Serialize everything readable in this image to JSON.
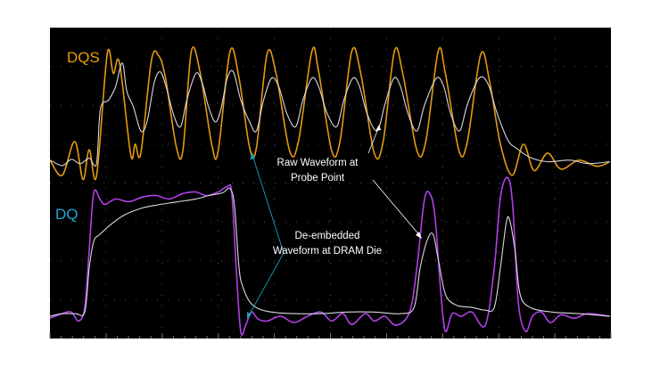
{
  "chart_data": {
    "type": "line",
    "title": "",
    "xlabel": "",
    "ylabel": "",
    "xlim": [
      0,
      10
    ],
    "ylim": [
      0,
      8
    ],
    "grid": true,
    "background": "#000000",
    "channel_labels": [
      {
        "text": "DQS",
        "color": "#e8a000"
      },
      {
        "text": "DQ",
        "color": "#1fa8d8"
      }
    ],
    "series": [
      {
        "channel": "DQS",
        "kind": "de-embedded",
        "color": "#e39a10",
        "points": [
          [
            0,
            4.59
          ],
          [
            0.22,
            4.2
          ],
          [
            0.44,
            5.07
          ],
          [
            0.59,
            4.09
          ],
          [
            0.7,
            4.86
          ],
          [
            0.83,
            4.18
          ],
          [
            1.02,
            7.32
          ],
          [
            1.13,
            6.82
          ],
          [
            1.24,
            7.09
          ],
          [
            1.44,
            4.73
          ],
          [
            1.52,
            5.0
          ],
          [
            1.62,
            4.77
          ],
          [
            1.81,
            7.16
          ],
          [
            1.94,
            7.27
          ],
          [
            2.06,
            6.7
          ],
          [
            2.25,
            4.95
          ],
          [
            2.37,
            4.84
          ],
          [
            2.52,
            7.39
          ],
          [
            2.68,
            6.82
          ],
          [
            2.89,
            4.95
          ],
          [
            3.0,
            4.84
          ],
          [
            3.21,
            7.39
          ],
          [
            3.37,
            6.7
          ],
          [
            3.56,
            4.91
          ],
          [
            3.68,
            4.91
          ],
          [
            3.87,
            7.32
          ],
          [
            4.03,
            6.82
          ],
          [
            4.27,
            4.84
          ],
          [
            4.43,
            5.07
          ],
          [
            4.67,
            7.39
          ],
          [
            4.79,
            6.86
          ],
          [
            5.02,
            4.84
          ],
          [
            5.17,
            5.07
          ],
          [
            5.38,
            7.39
          ],
          [
            5.54,
            6.82
          ],
          [
            5.78,
            4.77
          ],
          [
            5.94,
            5.07
          ],
          [
            6.14,
            7.39
          ],
          [
            6.29,
            6.82
          ],
          [
            6.54,
            4.84
          ],
          [
            6.7,
            5.07
          ],
          [
            6.92,
            7.39
          ],
          [
            7.05,
            6.82
          ],
          [
            7.29,
            4.84
          ],
          [
            7.44,
            5.07
          ],
          [
            7.68,
            7.32
          ],
          [
            7.84,
            6.59
          ],
          [
            8.03,
            5.0
          ],
          [
            8.24,
            4.2
          ],
          [
            8.44,
            5.0
          ],
          [
            8.63,
            4.32
          ],
          [
            8.87,
            4.77
          ],
          [
            9.11,
            4.36
          ],
          [
            9.43,
            4.59
          ],
          [
            9.75,
            4.43
          ],
          [
            9.98,
            4.55
          ]
        ]
      },
      {
        "channel": "DQS",
        "kind": "raw",
        "color": "#d8d8e0",
        "points": [
          [
            0,
            4.59
          ],
          [
            0.22,
            4.45
          ],
          [
            0.38,
            4.61
          ],
          [
            0.54,
            4.5
          ],
          [
            0.7,
            4.64
          ],
          [
            0.83,
            4.5
          ],
          [
            0.9,
            5.91
          ],
          [
            1.05,
            6.14
          ],
          [
            1.17,
            6.48
          ],
          [
            1.29,
            7.09
          ],
          [
            1.37,
            6.36
          ],
          [
            1.49,
            5.95
          ],
          [
            1.62,
            5.34
          ],
          [
            1.73,
            5.57
          ],
          [
            1.86,
            6.59
          ],
          [
            1.97,
            6.86
          ],
          [
            2.08,
            6.43
          ],
          [
            2.21,
            5.73
          ],
          [
            2.33,
            5.45
          ],
          [
            2.44,
            6.14
          ],
          [
            2.6,
            6.82
          ],
          [
            2.71,
            6.59
          ],
          [
            2.83,
            5.95
          ],
          [
            2.95,
            5.57
          ],
          [
            3.05,
            5.91
          ],
          [
            3.16,
            6.7
          ],
          [
            3.27,
            6.86
          ],
          [
            3.4,
            6.14
          ],
          [
            3.56,
            5.57
          ],
          [
            3.68,
            5.34
          ],
          [
            3.81,
            6.14
          ],
          [
            3.95,
            6.7
          ],
          [
            4.08,
            6.48
          ],
          [
            4.22,
            5.8
          ],
          [
            4.38,
            5.45
          ],
          [
            4.51,
            6.14
          ],
          [
            4.67,
            6.7
          ],
          [
            4.79,
            6.48
          ],
          [
            4.94,
            5.8
          ],
          [
            5.11,
            5.45
          ],
          [
            5.24,
            6.14
          ],
          [
            5.4,
            6.7
          ],
          [
            5.52,
            6.48
          ],
          [
            5.65,
            5.8
          ],
          [
            5.83,
            5.34
          ],
          [
            5.97,
            6.02
          ],
          [
            6.13,
            6.7
          ],
          [
            6.25,
            6.48
          ],
          [
            6.38,
            5.8
          ],
          [
            6.54,
            5.34
          ],
          [
            6.68,
            6.02
          ],
          [
            6.89,
            6.7
          ],
          [
            7.02,
            6.48
          ],
          [
            7.14,
            5.8
          ],
          [
            7.3,
            5.34
          ],
          [
            7.44,
            6.02
          ],
          [
            7.65,
            6.7
          ],
          [
            7.81,
            6.55
          ],
          [
            7.97,
            5.8
          ],
          [
            8.16,
            5.11
          ],
          [
            8.32,
            4.89
          ],
          [
            8.56,
            4.66
          ],
          [
            8.87,
            4.55
          ],
          [
            9.27,
            4.59
          ],
          [
            9.59,
            4.5
          ],
          [
            9.98,
            4.55
          ]
        ]
      },
      {
        "channel": "DQ",
        "kind": "de-embedded",
        "color": "#b040e8",
        "points": [
          [
            0,
            0.52
          ],
          [
            0.22,
            0.64
          ],
          [
            0.38,
            0.68
          ],
          [
            0.51,
            0.45
          ],
          [
            0.62,
            0.8
          ],
          [
            0.7,
            2.27
          ],
          [
            0.78,
            3.75
          ],
          [
            0.89,
            3.59
          ],
          [
            0.98,
            3.45
          ],
          [
            1.17,
            3.59
          ],
          [
            1.41,
            3.52
          ],
          [
            1.65,
            3.64
          ],
          [
            1.89,
            3.68
          ],
          [
            2.13,
            3.59
          ],
          [
            2.37,
            3.73
          ],
          [
            2.6,
            3.77
          ],
          [
            2.79,
            3.68
          ],
          [
            3.0,
            3.77
          ],
          [
            3.16,
            3.91
          ],
          [
            3.24,
            3.75
          ],
          [
            3.32,
            1.82
          ],
          [
            3.4,
            0.18
          ],
          [
            3.49,
            0.34
          ],
          [
            3.59,
            0.68
          ],
          [
            3.71,
            0.5
          ],
          [
            3.87,
            0.45
          ],
          [
            4.11,
            0.57
          ],
          [
            4.35,
            0.41
          ],
          [
            4.59,
            0.57
          ],
          [
            4.83,
            0.68
          ],
          [
            5.02,
            0.45
          ],
          [
            5.22,
            0.64
          ],
          [
            5.38,
            0.36
          ],
          [
            5.62,
            0.64
          ],
          [
            5.78,
            0.45
          ],
          [
            5.97,
            0.57
          ],
          [
            6.17,
            0.34
          ],
          [
            6.41,
            0.68
          ],
          [
            6.54,
            1.82
          ],
          [
            6.67,
            3.52
          ],
          [
            6.76,
            3.75
          ],
          [
            6.86,
            3.18
          ],
          [
            6.97,
            1.14
          ],
          [
            7.05,
            0.18
          ],
          [
            7.17,
            0.64
          ],
          [
            7.33,
            0.57
          ],
          [
            7.52,
            0.68
          ],
          [
            7.76,
            0.34
          ],
          [
            7.92,
            1.82
          ],
          [
            8.03,
            3.64
          ],
          [
            8.16,
            4.14
          ],
          [
            8.25,
            3.41
          ],
          [
            8.35,
            0.91
          ],
          [
            8.48,
            0.18
          ],
          [
            8.6,
            0.57
          ],
          [
            8.76,
            0.68
          ],
          [
            8.92,
            0.41
          ],
          [
            9.11,
            0.61
          ],
          [
            9.35,
            0.52
          ],
          [
            9.59,
            0.64
          ],
          [
            9.98,
            0.57
          ]
        ]
      },
      {
        "channel": "DQ",
        "kind": "raw",
        "color": "#d8d8e0",
        "points": [
          [
            0,
            0.57
          ],
          [
            0.22,
            0.64
          ],
          [
            0.46,
            0.64
          ],
          [
            0.62,
            0.68
          ],
          [
            0.7,
            1.82
          ],
          [
            0.78,
            2.5
          ],
          [
            0.89,
            2.68
          ],
          [
            1.1,
            2.95
          ],
          [
            1.33,
            3.18
          ],
          [
            1.65,
            3.36
          ],
          [
            1.97,
            3.45
          ],
          [
            2.29,
            3.52
          ],
          [
            2.6,
            3.59
          ],
          [
            2.84,
            3.68
          ],
          [
            3.08,
            3.75
          ],
          [
            3.21,
            3.86
          ],
          [
            3.29,
            3.41
          ],
          [
            3.37,
            1.82
          ],
          [
            3.44,
            1.32
          ],
          [
            3.56,
            0.95
          ],
          [
            3.71,
            0.77
          ],
          [
            3.95,
            0.68
          ],
          [
            4.35,
            0.64
          ],
          [
            4.83,
            0.64
          ],
          [
            5.3,
            0.68
          ],
          [
            5.78,
            0.68
          ],
          [
            6.25,
            0.64
          ],
          [
            6.49,
            0.8
          ],
          [
            6.6,
            1.82
          ],
          [
            6.73,
            2.55
          ],
          [
            6.83,
            2.68
          ],
          [
            6.92,
            2.05
          ],
          [
            7.05,
            1.14
          ],
          [
            7.24,
            0.86
          ],
          [
            7.52,
            0.8
          ],
          [
            7.76,
            0.73
          ],
          [
            7.92,
            0.8
          ],
          [
            8.03,
            1.82
          ],
          [
            8.13,
            2.95
          ],
          [
            8.19,
            3.07
          ],
          [
            8.29,
            2.27
          ],
          [
            8.38,
            1.14
          ],
          [
            8.56,
            0.8
          ],
          [
            8.95,
            0.68
          ],
          [
            9.43,
            0.64
          ],
          [
            9.98,
            0.57
          ]
        ]
      }
    ],
    "annotations": [
      {
        "lines": [
          "Raw Waveform at",
          "Probe Point"
        ],
        "color": "#ffffff"
      },
      {
        "lines": [
          "De-embedded",
          "Waveform at DRAM Die"
        ],
        "color": "#ffffff",
        "arrow_color": "#1aa0b8"
      }
    ]
  }
}
